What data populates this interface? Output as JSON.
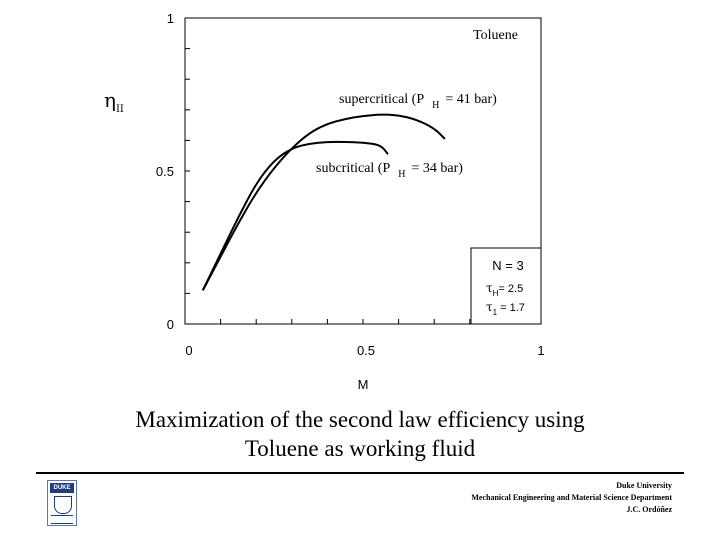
{
  "chart_data": {
    "type": "line",
    "title": "",
    "xlabel": "M",
    "ylabel_main": "η",
    "ylabel_sub": "II",
    "xlim": [
      0,
      1
    ],
    "ylim": [
      0,
      1
    ],
    "x_ticks": [
      "0",
      "0.5",
      "1"
    ],
    "y_ticks": [
      "0",
      "0.5",
      "1"
    ],
    "minor_tick_step": 0.1,
    "grid": false,
    "series": [
      {
        "name": "supercritical",
        "x": [
          0.05,
          0.1,
          0.15,
          0.2,
          0.25,
          0.3,
          0.35,
          0.4,
          0.45,
          0.5,
          0.55,
          0.6,
          0.65,
          0.7,
          0.73
        ],
        "y": [
          0.11,
          0.22,
          0.33,
          0.43,
          0.51,
          0.575,
          0.625,
          0.655,
          0.67,
          0.68,
          0.685,
          0.682,
          0.668,
          0.64,
          0.605
        ]
      },
      {
        "name": "subcritical",
        "x": [
          0.05,
          0.1,
          0.15,
          0.2,
          0.25,
          0.3,
          0.35,
          0.4,
          0.45,
          0.5,
          0.55,
          0.57
        ],
        "y": [
          0.11,
          0.23,
          0.35,
          0.46,
          0.535,
          0.575,
          0.59,
          0.595,
          0.595,
          0.593,
          0.585,
          0.555
        ]
      }
    ],
    "annotations": {
      "fluid": "Toluene",
      "super_text": "supercritical (P",
      "super_sub": "H",
      "super_rest": "= 41 bar)",
      "sub_text": "subcritical (P",
      "sub_sub": "H",
      "sub_rest": "= 34 bar)"
    },
    "legend_box": {
      "n_line": "N = 3",
      "tau_h_sub": "H",
      "tau_h_val": "= 2.5",
      "tau_1_sub": "1",
      "tau_1_val": "= 1.7"
    }
  },
  "caption": {
    "line1": "Maximization of the second law efficiency using",
    "line2": "Toluene as working fluid"
  },
  "footer": {
    "line1": "Duke University",
    "line2": "Mechanical Engineering and Material Science Department",
    "line3": "J.C. Ordóñez"
  },
  "logo": {
    "text": "DUKE"
  }
}
